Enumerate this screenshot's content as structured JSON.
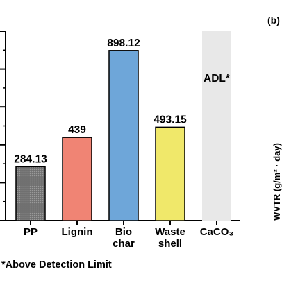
{
  "panel_label": "(b)",
  "right_panel": {
    "ylabel_fragment": "WVTR (g/m² · day)"
  },
  "footnote": "*Above Detection Limit",
  "chart_data": {
    "type": "bar",
    "categories": [
      {
        "label_lines": [
          "PP"
        ]
      },
      {
        "label_lines": [
          "Lignin"
        ]
      },
      {
        "label_lines": [
          "Bio",
          "char"
        ]
      },
      {
        "label_lines": [
          "Waste",
          "shell"
        ]
      },
      {
        "label_lines": [
          "CaCO₃"
        ]
      }
    ],
    "values": [
      284.13,
      439,
      898.12,
      493.15,
      null
    ],
    "data_labels": [
      "284.13",
      "439",
      "898.12",
      "493.15",
      "ADL*"
    ],
    "colors": [
      "#7f7f7f",
      "#f08474",
      "#6ea6d9",
      "#f0e86a",
      "#e8e8e8"
    ],
    "hatched": [
      true,
      false,
      false,
      false,
      false
    ],
    "ylim": [
      0,
      1000
    ],
    "grid": false
  }
}
